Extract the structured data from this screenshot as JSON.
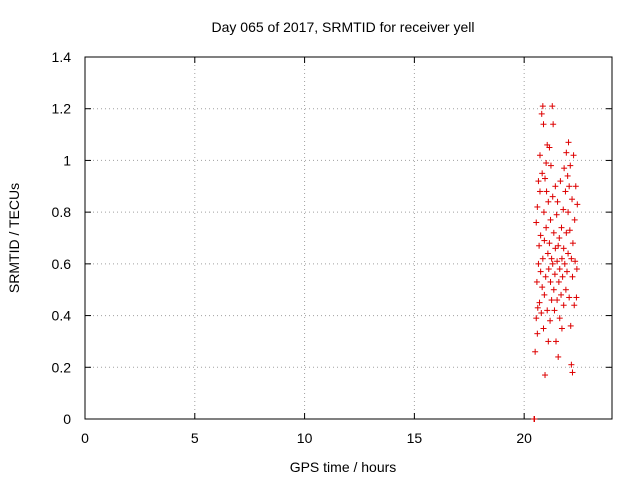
{
  "chart_data": {
    "type": "scatter",
    "title": "Day 065 of 2017, SRMTID for receiver yell",
    "xlabel": "GPS time / hours",
    "ylabel": "SRMTID / TECUs",
    "xlim": [
      0,
      24
    ],
    "ylim": [
      0,
      1.4
    ],
    "xticks": [
      0,
      5,
      10,
      15,
      20
    ],
    "xtick_labels": [
      "0",
      "5",
      "10",
      "15",
      "20"
    ],
    "yticks": [
      0,
      0.2,
      0.4,
      0.6,
      0.8,
      1,
      1.2,
      1.4
    ],
    "ytick_labels": [
      "0",
      "0.2",
      "0.4",
      "0.6",
      "0.8",
      "1",
      "1.2",
      "1.4"
    ],
    "grid": true,
    "marker": "+",
    "color": "#dd0000",
    "series": [
      {
        "name": "SRMTID",
        "points": [
          [
            20.45,
            0.0
          ],
          [
            20.47,
            0.0
          ],
          [
            20.5,
            0.26
          ],
          [
            20.55,
            0.39
          ],
          [
            20.55,
            0.76
          ],
          [
            20.58,
            0.53
          ],
          [
            20.6,
            0.82
          ],
          [
            20.6,
            0.33
          ],
          [
            20.62,
            0.43
          ],
          [
            20.65,
            0.6
          ],
          [
            20.65,
            0.92
          ],
          [
            20.68,
            0.67
          ],
          [
            20.7,
            0.45
          ],
          [
            20.72,
            0.88
          ],
          [
            20.72,
            1.02
          ],
          [
            20.75,
            0.57
          ],
          [
            20.75,
            0.71
          ],
          [
            20.78,
            0.41
          ],
          [
            20.8,
            1.18
          ],
          [
            20.82,
            0.95
          ],
          [
            20.82,
            0.51
          ],
          [
            20.85,
            1.21
          ],
          [
            20.85,
            0.62
          ],
          [
            20.88,
            1.14
          ],
          [
            20.88,
            0.35
          ],
          [
            20.9,
            0.8
          ],
          [
            20.92,
            0.69
          ],
          [
            20.92,
            0.48
          ],
          [
            20.95,
            0.17
          ],
          [
            20.95,
            0.93
          ],
          [
            20.98,
            0.55
          ],
          [
            21.0,
            0.99
          ],
          [
            21.0,
            0.74
          ],
          [
            21.02,
            0.88
          ],
          [
            21.05,
            1.06
          ],
          [
            21.05,
            0.42
          ],
          [
            21.08,
            0.64
          ],
          [
            21.1,
            0.3
          ],
          [
            21.1,
            0.84
          ],
          [
            21.12,
            0.58
          ],
          [
            21.15,
            0.68
          ],
          [
            21.15,
            1.05
          ],
          [
            21.18,
            0.38
          ],
          [
            21.2,
            0.77
          ],
          [
            21.2,
            0.53
          ],
          [
            21.22,
            0.98
          ],
          [
            21.25,
            0.62
          ],
          [
            21.25,
            0.46
          ],
          [
            21.28,
            1.21
          ],
          [
            21.3,
            0.6
          ],
          [
            21.3,
            0.86
          ],
          [
            21.32,
            1.14
          ],
          [
            21.35,
            0.5
          ],
          [
            21.35,
            0.72
          ],
          [
            21.38,
            0.42
          ],
          [
            21.4,
            0.56
          ],
          [
            21.42,
            0.9
          ],
          [
            21.42,
            0.66
          ],
          [
            21.45,
            0.3
          ],
          [
            21.48,
            0.79
          ],
          [
            21.5,
            0.61
          ],
          [
            21.5,
            0.46
          ],
          [
            21.52,
            0.84
          ],
          [
            21.55,
            0.24
          ],
          [
            21.55,
            0.67
          ],
          [
            21.58,
            0.53
          ],
          [
            21.6,
            0.7
          ],
          [
            21.62,
            0.39
          ],
          [
            21.62,
            0.58
          ],
          [
            21.65,
            0.92
          ],
          [
            21.68,
            0.48
          ],
          [
            21.7,
            0.74
          ],
          [
            21.72,
            0.62
          ],
          [
            21.72,
            0.35
          ],
          [
            21.75,
            0.55
          ],
          [
            21.78,
            0.81
          ],
          [
            21.8,
            0.44
          ],
          [
            21.8,
            0.66
          ],
          [
            21.82,
            0.97
          ],
          [
            21.85,
            0.6
          ],
          [
            21.88,
            0.88
          ],
          [
            21.9,
            0.5
          ],
          [
            21.92,
            0.72
          ],
          [
            21.92,
            1.03
          ],
          [
            21.95,
            0.57
          ],
          [
            21.98,
            0.94
          ],
          [
            22.0,
            0.8
          ],
          [
            22.0,
            0.64
          ],
          [
            22.02,
            1.07
          ],
          [
            22.05,
            0.9
          ],
          [
            22.05,
            0.47
          ],
          [
            22.08,
            0.73
          ],
          [
            22.1,
            0.98
          ],
          [
            22.12,
            0.36
          ],
          [
            22.15,
            0.62
          ],
          [
            22.15,
            0.21
          ],
          [
            22.18,
            0.85
          ],
          [
            22.2,
            0.55
          ],
          [
            22.2,
            0.18
          ],
          [
            22.22,
            0.68
          ],
          [
            22.25,
            1.02
          ],
          [
            22.28,
            0.44
          ],
          [
            22.3,
            0.77
          ],
          [
            22.32,
            0.61
          ],
          [
            22.35,
            0.9
          ],
          [
            22.38,
            0.47
          ],
          [
            22.4,
            0.58
          ],
          [
            22.42,
            0.83
          ]
        ]
      }
    ]
  }
}
